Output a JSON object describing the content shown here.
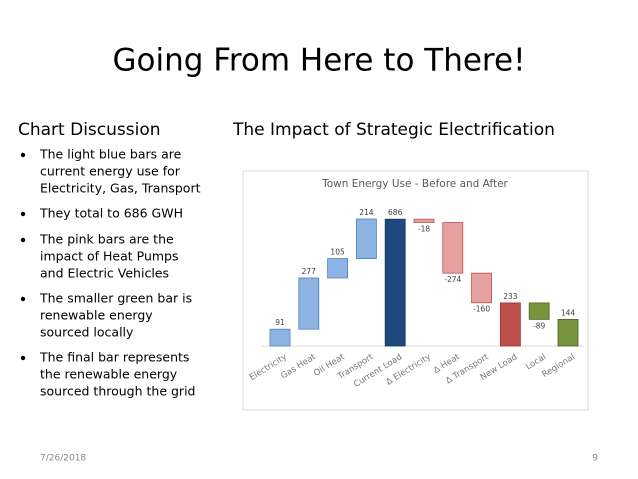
{
  "slide": {
    "title": "Going From Here to There!",
    "left_heading": "Chart Discussion",
    "right_heading": "The Impact of Strategic Electrification",
    "bullets": [
      [
        "The light blue bars are",
        "current energy use for",
        "Electricity, Gas, Transport"
      ],
      [
        "They total to 686 GWH"
      ],
      [
        "The pink bars are the",
        "impact of Heat Pumps",
        "and Electric Vehicles"
      ],
      [
        "The smaller green bar is",
        "renewable energy",
        "sourced locally"
      ],
      [
        "The final bar represents",
        "the renewable energy",
        "sourced through the grid"
      ]
    ],
    "date": "7/26/2018",
    "page": "9"
  },
  "chart_data": {
    "type": "waterfall",
    "title": "Town Energy Use - Before and After",
    "categories": [
      "Electricity",
      "Gas Heat",
      "Oil Heat",
      "Transport",
      "Current Load",
      "Δ Electricity",
      "Δ Heat",
      "Δ Transport",
      "New Load",
      "Local",
      "Regional"
    ],
    "values": [
      91,
      277,
      105,
      214,
      686,
      -18,
      -274,
      -160,
      233,
      -89,
      144
    ],
    "totals": [
      false,
      false,
      false,
      false,
      true,
      false,
      false,
      false,
      true,
      false,
      true
    ],
    "colors": [
      "#8db3e2",
      "#8db3e2",
      "#8db3e2",
      "#8db3e2",
      "#1f497d",
      "#e6a0a0",
      "#e6a0a0",
      "#e6a0a0",
      "#c0504d",
      "#77933c",
      "#77933c"
    ],
    "edgecolors": [
      "#4f81bd",
      "#4f81bd",
      "#4f81bd",
      "#4f81bd",
      "#17375e",
      "#c0504d",
      "#c0504d",
      "#c0504d",
      "#963634",
      "#4f6228",
      "#4f6228"
    ]
  }
}
